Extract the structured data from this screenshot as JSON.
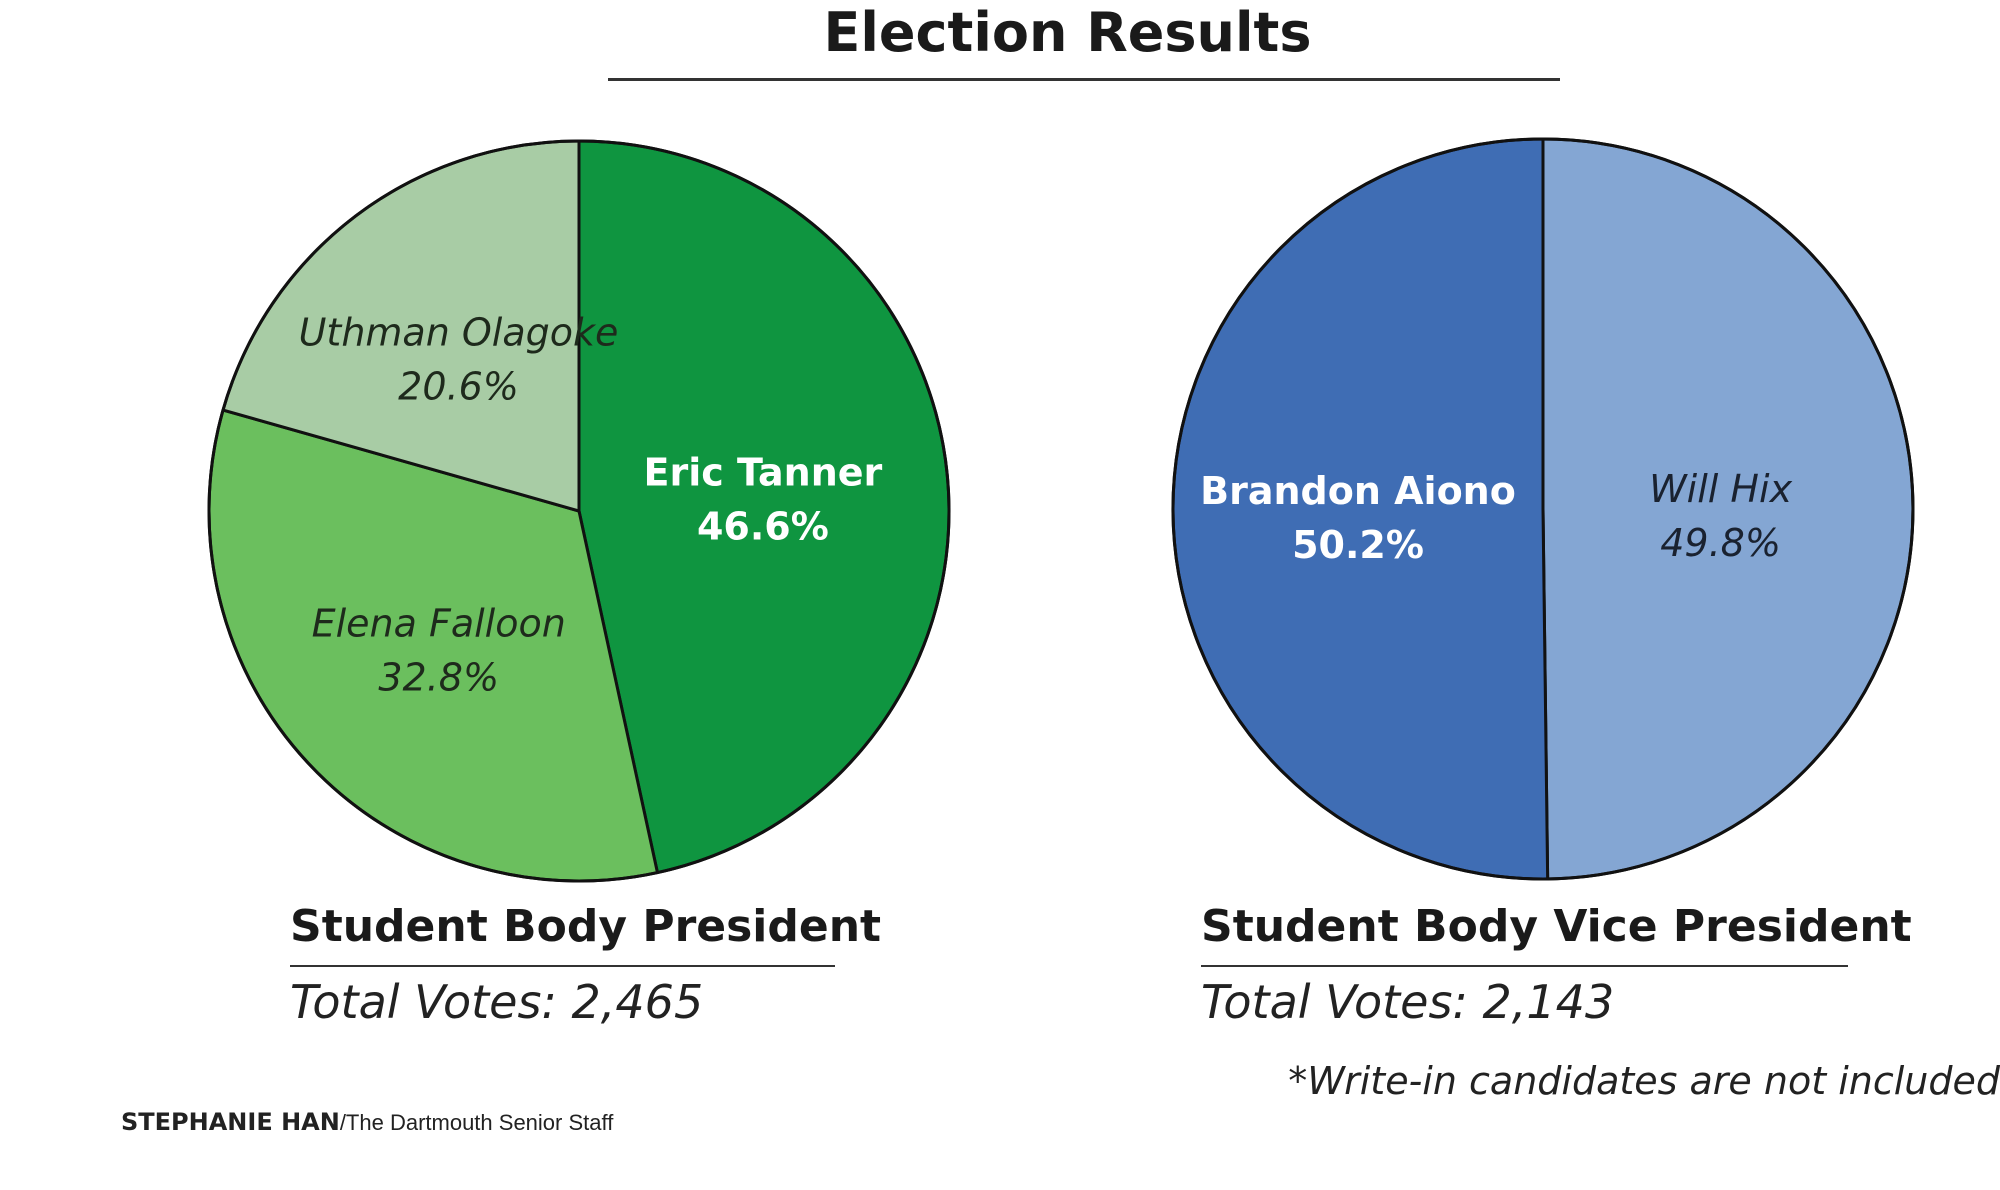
{
  "page_title": "Election Results",
  "colors": {
    "green_dark": "#0f9540",
    "green_mid": "#6bbf5e",
    "green_light": "#a8cca5",
    "blue_dark": "#3f6db4",
    "blue_light": "#84a6d3",
    "outline": "#111111"
  },
  "chart_data": [
    {
      "type": "pie",
      "title": "Student Body President",
      "total_votes_text": "Total Votes: 2,465",
      "slices": [
        {
          "label": "Eric Tanner",
          "value": 46.6,
          "value_text": "46.6%",
          "color": "#0f9540",
          "label_color": "#ffffff",
          "label_style": "bold"
        },
        {
          "label": "Elena Falloon",
          "value": 32.8,
          "value_text": "32.8%",
          "color": "#6bbf5e",
          "label_color": "#1e2a1c",
          "label_style": "italic"
        },
        {
          "label": "Uthman Olagoke",
          "value": 20.6,
          "value_text": "20.6%",
          "color": "#a8cca5",
          "label_color": "#1e2a1c",
          "label_style": "italic"
        }
      ]
    },
    {
      "type": "pie",
      "title": "Student Body Vice President",
      "total_votes_text": "Total Votes: 2,143",
      "slices": [
        {
          "label": "Will Hix",
          "value": 49.8,
          "value_text": "49.8%",
          "color": "#84a6d3",
          "label_color": "#1a2230",
          "label_style": "italic"
        },
        {
          "label": "Brandon Aiono",
          "value": 50.2,
          "value_text": "50.2%",
          "color": "#3f6db4",
          "label_color": "#ffffff",
          "label_style": "bold"
        }
      ]
    }
  ],
  "footnote": "*Write-in candidates are not included",
  "credit": {
    "name": "STEPHANIE HAN",
    "rest": "/The Dartmouth Senior Staff"
  }
}
